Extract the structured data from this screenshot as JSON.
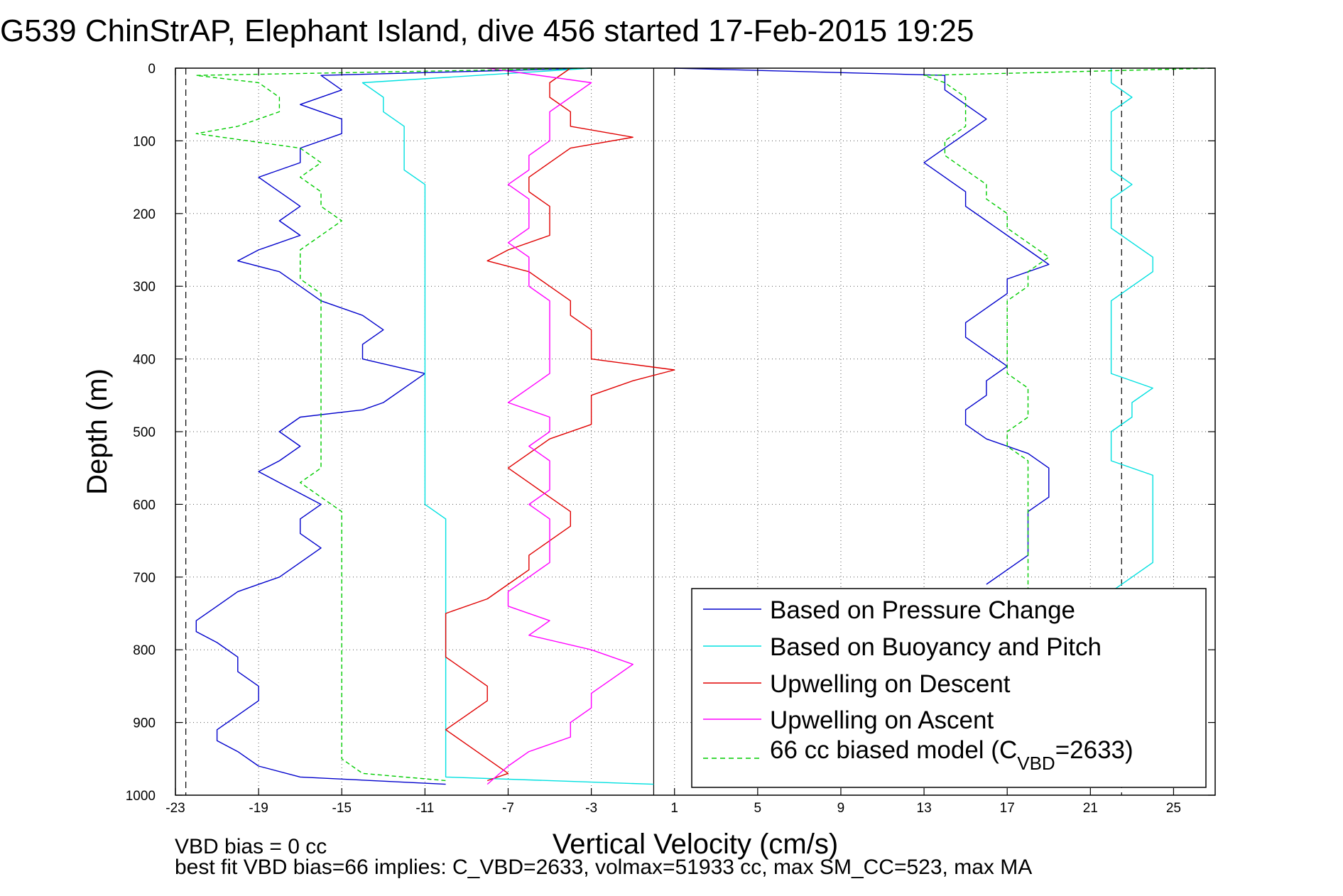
{
  "chart_data": {
    "type": "line",
    "title": "G539 ChinStrAP, Elephant Island, dive 456 started 17-Feb-2015 19:25",
    "xlabel": "Vertical Velocity (cm/s)",
    "ylabel": "Depth (m)",
    "xlim": [
      -23,
      27
    ],
    "ylim": [
      1000,
      0
    ],
    "y_reversed": true,
    "grid": true,
    "xticks": [
      -23,
      -19,
      -15,
      -11,
      -7,
      -3,
      1,
      5,
      9,
      13,
      17,
      21,
      25
    ],
    "yticks": [
      0,
      100,
      200,
      300,
      400,
      500,
      600,
      700,
      800,
      900,
      1000
    ],
    "legend_position": "bottom-right",
    "legend_labels": {
      "pressure": "Based on Pressure Change",
      "buoyancy": "Based on Buoyancy and Pitch",
      "descent": "Upwelling on Descent",
      "ascent": "Upwelling on Ascent",
      "model_prefix": "66 cc biased model (C",
      "model_sub": "VBD",
      "model_suffix": "=2633)"
    },
    "reference_lines": {
      "dashed_x": [
        -22.5,
        22.5
      ],
      "solid_x": [
        0
      ]
    },
    "series": [
      {
        "name": "Based on Pressure Change",
        "color": "#0000cc",
        "style": "solid",
        "descent": {
          "depth": [
            0,
            10,
            30,
            50,
            70,
            90,
            110,
            130,
            150,
            170,
            190,
            210,
            230,
            250,
            265,
            280,
            300,
            320,
            340,
            360,
            380,
            400,
            420,
            440,
            460,
            470,
            480,
            500,
            520,
            540,
            555,
            570,
            585,
            600,
            620,
            640,
            660,
            680,
            700,
            720,
            740,
            760,
            775,
            790,
            810,
            830,
            850,
            870,
            890,
            910,
            925,
            940,
            960,
            975,
            985
          ],
          "velocity": [
            -3,
            -16,
            -15,
            -17,
            -15,
            -15,
            -17,
            -17,
            -19,
            -18,
            -17,
            -18,
            -17,
            -19,
            -20,
            -18,
            -17,
            -16,
            -14,
            -13,
            -14,
            -14,
            -11,
            -12,
            -13,
            -14,
            -17,
            -18,
            -17,
            -18,
            -19,
            -18,
            -17,
            -16,
            -17,
            -17,
            -16,
            -17,
            -18,
            -20,
            -21,
            -22,
            -22,
            -21,
            -20,
            -20,
            -19,
            -19,
            -20,
            -21,
            -21,
            -20,
            -19,
            -17,
            -10
          ]
        },
        "ascent": {
          "depth": [
            710,
            690,
            670,
            650,
            630,
            610,
            590,
            570,
            550,
            530,
            510,
            490,
            470,
            450,
            430,
            410,
            390,
            370,
            350,
            330,
            310,
            290,
            270,
            250,
            230,
            210,
            190,
            170,
            150,
            130,
            110,
            90,
            70,
            50,
            30,
            10,
            0
          ],
          "velocity": [
            16,
            17,
            18,
            18,
            18,
            18,
            19,
            19,
            19,
            18,
            16,
            15,
            15,
            16,
            16,
            17,
            16,
            15,
            15,
            16,
            17,
            17,
            19,
            18,
            17,
            16,
            15,
            15,
            14,
            13,
            14,
            15,
            16,
            15,
            14,
            14,
            1
          ]
        }
      },
      {
        "name": "Based on Buoyancy and Pitch",
        "color": "#00e0e0",
        "style": "solid",
        "descent": {
          "depth": [
            0,
            20,
            40,
            60,
            80,
            100,
            120,
            140,
            160,
            180,
            200,
            220,
            240,
            260,
            280,
            300,
            320,
            340,
            360,
            380,
            400,
            420,
            440,
            460,
            480,
            500,
            520,
            540,
            560,
            580,
            600,
            620,
            640,
            660,
            680,
            700,
            720,
            740,
            760,
            780,
            800,
            820,
            840,
            860,
            880,
            900,
            920,
            940,
            960,
            975,
            985
          ],
          "velocity": [
            -3,
            -14,
            -13,
            -13,
            -12,
            -12,
            -12,
            -12,
            -11,
            -11,
            -11,
            -11,
            -11,
            -11,
            -11,
            -11,
            -11,
            -11,
            -11,
            -11,
            -11,
            -11,
            -11,
            -11,
            -11,
            -11,
            -11,
            -11,
            -11,
            -11,
            -11,
            -10,
            -10,
            -10,
            -10,
            -10,
            -10,
            -10,
            -10,
            -10,
            -10,
            -10,
            -10,
            -10,
            -10,
            -10,
            -10,
            -10,
            -10,
            -10,
            0
          ]
        },
        "ascent": {
          "depth": [
            720,
            700,
            680,
            660,
            640,
            620,
            600,
            580,
            560,
            540,
            520,
            500,
            480,
            460,
            440,
            420,
            400,
            380,
            360,
            340,
            320,
            300,
            280,
            260,
            240,
            220,
            200,
            180,
            160,
            140,
            120,
            100,
            80,
            60,
            40,
            20,
            0
          ],
          "velocity": [
            22,
            23,
            24,
            24,
            24,
            24,
            24,
            24,
            24,
            22,
            22,
            22,
            23,
            23,
            24,
            22,
            22,
            22,
            22,
            22,
            22,
            23,
            24,
            24,
            23,
            22,
            22,
            22,
            23,
            22,
            22,
            22,
            22,
            22,
            23,
            22,
            22
          ]
        }
      },
      {
        "name": "Upwelling on Descent",
        "color": "#e00000",
        "style": "solid",
        "descent": {
          "depth": [
            0,
            20,
            40,
            60,
            80,
            95,
            110,
            130,
            150,
            170,
            190,
            210,
            230,
            250,
            265,
            280,
            300,
            320,
            340,
            360,
            380,
            400,
            415,
            430,
            450,
            470,
            490,
            510,
            530,
            550,
            570,
            590,
            610,
            630,
            650,
            670,
            690,
            710,
            730,
            750,
            770,
            790,
            810,
            830,
            850,
            870,
            890,
            910,
            930,
            950,
            970,
            980
          ],
          "velocity": [
            -4,
            -5,
            -5,
            -4,
            -4,
            -1,
            -4,
            -5,
            -6,
            -6,
            -5,
            -5,
            -5,
            -7,
            -8,
            -6,
            -5,
            -4,
            -4,
            -3,
            -3,
            -3,
            1,
            -1,
            -3,
            -3,
            -3,
            -5,
            -6,
            -7,
            -6,
            -5,
            -4,
            -4,
            -5,
            -6,
            -6,
            -7,
            -8,
            -10,
            -10,
            -10,
            -10,
            -9,
            -8,
            -8,
            -9,
            -10,
            -9,
            -8,
            -7,
            -8
          ]
        }
      },
      {
        "name": "Upwelling on Ascent",
        "color": "#ff00ff",
        "style": "solid",
        "ascent": {
          "depth": [
            985,
            960,
            940,
            920,
            900,
            880,
            860,
            840,
            820,
            800,
            780,
            760,
            740,
            720,
            700,
            680,
            660,
            640,
            620,
            600,
            580,
            560,
            540,
            520,
            500,
            480,
            460,
            440,
            420,
            400,
            380,
            360,
            340,
            320,
            300,
            280,
            260,
            240,
            220,
            200,
            180,
            160,
            140,
            120,
            100,
            80,
            60,
            40,
            20,
            0
          ],
          "velocity": [
            -8,
            -7,
            -6,
            -4,
            -4,
            -3,
            -3,
            -2,
            -1,
            -3,
            -6,
            -5,
            -7,
            -7,
            -6,
            -5,
            -5,
            -5,
            -5,
            -6,
            -5,
            -5,
            -5,
            -6,
            -5,
            -5,
            -7,
            -6,
            -5,
            -5,
            -5,
            -5,
            -5,
            -5,
            -6,
            -6,
            -6,
            -7,
            -6,
            -6,
            -6,
            -7,
            -6,
            -6,
            -5,
            -5,
            -5,
            -4,
            -3,
            -8
          ]
        }
      },
      {
        "name": "66 cc biased model (CVBD=2633)",
        "color": "#00cc00",
        "style": "dashed",
        "descent": {
          "depth": [
            0,
            10,
            20,
            40,
            60,
            80,
            90,
            110,
            130,
            150,
            170,
            190,
            210,
            230,
            250,
            270,
            290,
            310,
            330,
            350,
            370,
            390,
            410,
            430,
            450,
            470,
            490,
            510,
            530,
            550,
            570,
            590,
            610,
            630,
            650,
            670,
            690,
            710,
            730,
            750,
            770,
            790,
            810,
            830,
            850,
            870,
            890,
            910,
            930,
            950,
            970,
            980
          ],
          "velocity": [
            -3,
            -22,
            -19,
            -18,
            -18,
            -20,
            -22,
            -17,
            -16,
            -17,
            -16,
            -16,
            -15,
            -16,
            -17,
            -17,
            -17,
            -16,
            -16,
            -16,
            -16,
            -16,
            -16,
            -16,
            -16,
            -16,
            -16,
            -16,
            -16,
            -16,
            -17,
            -16,
            -15,
            -15,
            -15,
            -15,
            -15,
            -15,
            -15,
            -15,
            -15,
            -15,
            -15,
            -15,
            -15,
            -15,
            -15,
            -15,
            -15,
            -15,
            -14,
            -10
          ]
        },
        "ascent": {
          "depth": [
            720,
            700,
            680,
            660,
            640,
            620,
            600,
            580,
            560,
            540,
            520,
            500,
            480,
            460,
            440,
            420,
            400,
            380,
            360,
            340,
            320,
            300,
            280,
            260,
            240,
            220,
            200,
            180,
            160,
            140,
            120,
            100,
            80,
            60,
            40,
            20,
            10,
            0
          ],
          "velocity": [
            18,
            18,
            18,
            18,
            18,
            18,
            18,
            18,
            18,
            18,
            17,
            17,
            18,
            18,
            18,
            17,
            17,
            17,
            17,
            17,
            17,
            18,
            18,
            19,
            18,
            17,
            17,
            16,
            16,
            15,
            14,
            14,
            15,
            15,
            15,
            14,
            13,
            27
          ]
        }
      }
    ]
  },
  "footer": {
    "line1": "VBD bias = 0 cc",
    "line2": "best fit VBD bias=66 implies: C_VBD=2633, volmax=51933 cc, max SM_CC=523, max MA"
  }
}
